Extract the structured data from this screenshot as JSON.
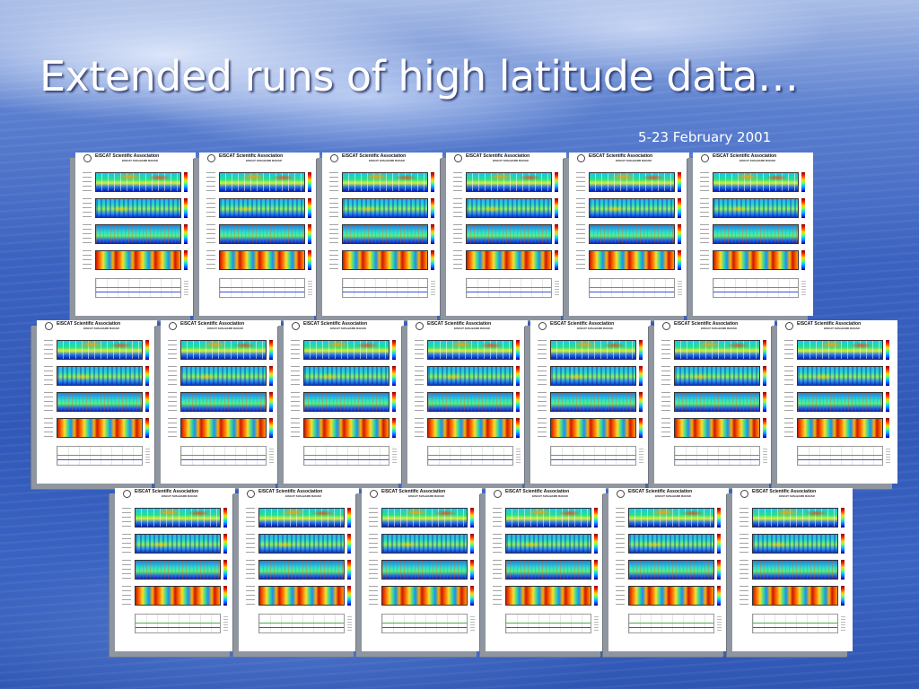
{
  "slide": {
    "title": "Extended runs of high latitude data…",
    "subtitle": "5-23 February 2001"
  },
  "thumbnail_page": {
    "organization": "EISCAT Scientific Association",
    "radar": "EISCAT SVALBARD RADAR",
    "panels": [
      "electron-density",
      "electron-temperature",
      "ion-temperature",
      "ion-velocity"
    ],
    "colorbar": [
      "#8b0000",
      "#ff2a00",
      "#ffd400",
      "#7fff5a",
      "#00c8ff",
      "#1a3cff",
      "#00007a"
    ]
  },
  "thumbnails": [
    {
      "row": 1,
      "index": 1
    },
    {
      "row": 1,
      "index": 2
    },
    {
      "row": 1,
      "index": 3
    },
    {
      "row": 1,
      "index": 4
    },
    {
      "row": 1,
      "index": 5
    },
    {
      "row": 1,
      "index": 6
    },
    {
      "row": 2,
      "index": 1
    },
    {
      "row": 2,
      "index": 2
    },
    {
      "row": 2,
      "index": 3
    },
    {
      "row": 2,
      "index": 4
    },
    {
      "row": 2,
      "index": 5
    },
    {
      "row": 2,
      "index": 6
    },
    {
      "row": 2,
      "index": 7
    },
    {
      "row": 3,
      "index": 1
    },
    {
      "row": 3,
      "index": 2
    },
    {
      "row": 3,
      "index": 3
    },
    {
      "row": 3,
      "index": 4
    },
    {
      "row": 3,
      "index": 5
    },
    {
      "row": 3,
      "index": 6
    }
  ],
  "colors": {
    "background_top": "#a9bde6",
    "background_main": "#3158b8",
    "title_text": "#ffffff"
  }
}
